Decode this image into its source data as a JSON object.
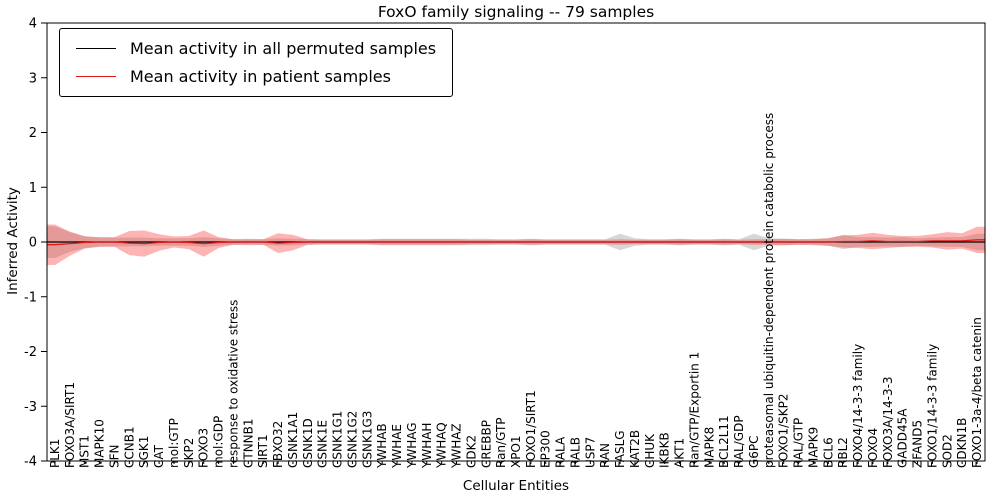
{
  "chart_data": {
    "type": "line",
    "title": "FoxO family signaling -- 79 samples",
    "xlabel": "Cellular Entities",
    "ylabel": "Inferred Activity",
    "ylim": [
      -4,
      4
    ],
    "yticks": [
      -4,
      -3,
      -2,
      -1,
      0,
      1,
      2,
      3,
      4
    ],
    "grid": false,
    "legend_position": "upper left",
    "categories": [
      "PLK1",
      "FOXO3A/SIRT1",
      "MST1",
      "MAPK10",
      "SFN",
      "CCNB1",
      "SGK1",
      "CAT",
      "mol:GTP",
      "SKP2",
      "FOXO3",
      "mol:GDP",
      "response to oxidative stress",
      "CTNNB1",
      "SIRT1",
      "FBXO32",
      "CSNK1A1",
      "CSNK1D",
      "CSNK1E",
      "CSNK1G1",
      "CSNK1G2",
      "CSNK1G3",
      "YWHAB",
      "YWHAE",
      "YWHAG",
      "YWHAH",
      "YWHAQ",
      "YWHAZ",
      "CDK2",
      "CREBBP",
      "Ran/GTP",
      "XPO1",
      "FOXO1/SIRT1",
      "EP300",
      "RALA",
      "RALB",
      "USP7",
      "RAN",
      "FASLG",
      "KAT2B",
      "CHUK",
      "IKBKB",
      "AKT1",
      "Ran/GTP/Exportin 1",
      "MAPK8",
      "BCL2L11",
      "RAL/GDP",
      "G6PC",
      "proteasomal ubiquitin-dependent protein catabolic process",
      "FOXO1/SKP2",
      "RAL/GTP",
      "MAPK9",
      "BCL6",
      "RBL2",
      "FOXO4/14-3-3 family",
      "FOXO4",
      "FOXO3A/14-3-3",
      "GADD45A",
      "ZFAND5",
      "FOXO1/14-3-3 family",
      "SOD2",
      "CDKN1B",
      "FOXO1-3a-4/beta catenin"
    ],
    "series": [
      {
        "name": "Mean activity in all permuted samples",
        "color": "#000000",
        "band_color": "rgba(110,110,110,0.28)",
        "mean": [
          0,
          0,
          0,
          0,
          0,
          0,
          0,
          0,
          0,
          0,
          0,
          0,
          0,
          0,
          0,
          0,
          0,
          0,
          0,
          0,
          0,
          0,
          0,
          0,
          0,
          0,
          0,
          0,
          0,
          0,
          0,
          0,
          0,
          0,
          0,
          0,
          0,
          0,
          0,
          0,
          0,
          0,
          0,
          0,
          0,
          0,
          0,
          0,
          0,
          0,
          0,
          0,
          0,
          0,
          0,
          0,
          0,
          0,
          0,
          0,
          0,
          0,
          0
        ],
        "std": [
          0.29,
          0.18,
          0.11,
          0.08,
          0.08,
          0.08,
          0.08,
          0.07,
          0.07,
          0.07,
          0.09,
          0.07,
          0.05,
          0.06,
          0.05,
          0.07,
          0.06,
          0.05,
          0.05,
          0.05,
          0.05,
          0.05,
          0.06,
          0.06,
          0.06,
          0.06,
          0.06,
          0.06,
          0.06,
          0.06,
          0.05,
          0.05,
          0.06,
          0.05,
          0.05,
          0.05,
          0.05,
          0.05,
          0.15,
          0.07,
          0.05,
          0.05,
          0.06,
          0.05,
          0.05,
          0.06,
          0.05,
          0.15,
          0.07,
          0.06,
          0.05,
          0.06,
          0.07,
          0.13,
          0.09,
          0.09,
          0.08,
          0.09,
          0.07,
          0.08,
          0.09,
          0.09,
          0.15
        ]
      },
      {
        "name": "Mean activity in patient samples",
        "color": "#dd1c1c",
        "band_color": "rgba(255,40,40,0.35)",
        "mean": [
          -0.05,
          -0.03,
          -0.01,
          0,
          0,
          -0.02,
          -0.03,
          -0.01,
          0,
          -0.01,
          -0.03,
          -0.01,
          0,
          0,
          0,
          -0.02,
          -0.01,
          0,
          0,
          0,
          0,
          0,
          0,
          0,
          0,
          0,
          0,
          0,
          0,
          0,
          0,
          0,
          0,
          0,
          0,
          0,
          0,
          0,
          0,
          0,
          0,
          0,
          0,
          0,
          0,
          0,
          0,
          0,
          0,
          0,
          0,
          0,
          0,
          0.01,
          0.01,
          0.02,
          0.01,
          0.01,
          0.01,
          0.02,
          0.02,
          0.02,
          0.04
        ],
        "std": [
          0.37,
          0.22,
          0.11,
          0.09,
          0.09,
          0.22,
          0.24,
          0.15,
          0.1,
          0.12,
          0.24,
          0.1,
          0.05,
          0.05,
          0.05,
          0.18,
          0.14,
          0.05,
          0.04,
          0.04,
          0.04,
          0.04,
          0.05,
          0.05,
          0.05,
          0.05,
          0.05,
          0.05,
          0.04,
          0.04,
          0.04,
          0.04,
          0.05,
          0.04,
          0.04,
          0.04,
          0.04,
          0.04,
          0.05,
          0.04,
          0.04,
          0.04,
          0.05,
          0.04,
          0.04,
          0.05,
          0.04,
          0.05,
          0.05,
          0.06,
          0.05,
          0.05,
          0.07,
          0.11,
          0.12,
          0.15,
          0.12,
          0.1,
          0.1,
          0.12,
          0.16,
          0.14,
          0.24
        ]
      }
    ]
  }
}
